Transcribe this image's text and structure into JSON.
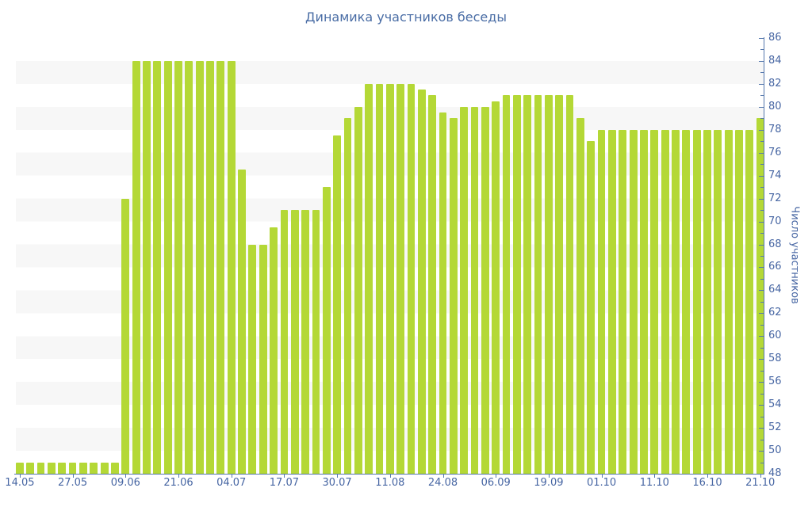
{
  "title": "Динамика участников беседы",
  "colors": {
    "bar": "#b4d836",
    "text": "#4766a3",
    "title_text": "#4a6da5",
    "axis_line": "#5578ad",
    "band": "#f7f7f7",
    "background": "#ffffff"
  },
  "chart_data": {
    "type": "bar",
    "title": "Динамика участников беседы",
    "xlabel": "",
    "ylabel": "Число участников",
    "ylim": [
      48,
      86
    ],
    "y_tick_interval": 2,
    "y_minor_tick_interval": 1,
    "y_axis_side": "right",
    "legend": "none",
    "grid": "alternating horizontal bands every 2 units",
    "x_tick_labels": [
      "14.05",
      "27.05",
      "09.06",
      "21.06",
      "04.07",
      "17.07",
      "30.07",
      "11.08",
      "24.08",
      "06.09",
      "19.09",
      "01.10",
      "11.10",
      "16.10",
      "21.10"
    ],
    "x_tick_bar_indices": [
      0,
      5,
      10,
      15,
      20,
      25,
      30,
      35,
      40,
      45,
      50,
      55,
      60,
      65,
      70
    ],
    "values": [
      49,
      49,
      49,
      49,
      49,
      49,
      49,
      49,
      49,
      49,
      72,
      84,
      84,
      84,
      84,
      84,
      84,
      84,
      84,
      84,
      84,
      74.5,
      68,
      68,
      69.5,
      71,
      71,
      71,
      71,
      73,
      77.5,
      79,
      80,
      82,
      82,
      82,
      82,
      82,
      81.5,
      81,
      79.5,
      79,
      80,
      80,
      80,
      80.5,
      81,
      81,
      81,
      81,
      81,
      81,
      81,
      79,
      77,
      78,
      78,
      78,
      78,
      78,
      78,
      78,
      78,
      78,
      78,
      78,
      78,
      78,
      78,
      78,
      79
    ]
  }
}
